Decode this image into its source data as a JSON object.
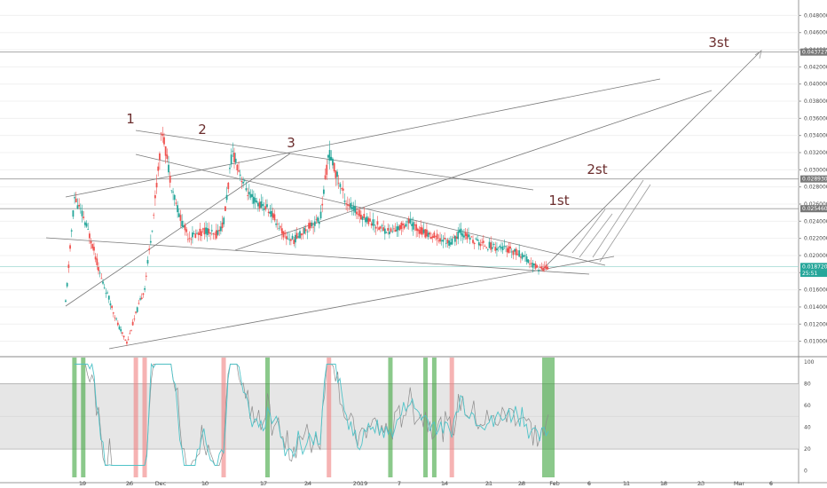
{
  "chart_data": [
    {
      "type": "candlestick",
      "y_axis": {
        "ticks": [
          "0.048000",
          "0.046000",
          "0.044000",
          "0.042000",
          "0.040000",
          "0.038000",
          "0.036000",
          "0.034000",
          "0.032000",
          "0.030000",
          "0.028000",
          "0.026000",
          "0.024000",
          "0.022000",
          "0.020000",
          "0.018000",
          "0.016000",
          "0.014000",
          "0.012000",
          "0.010000"
        ],
        "range": [
          0.0082,
          0.0498
        ]
      },
      "x_axis": {
        "labels": [
          "19",
          "26",
          "Dec",
          "10",
          "17",
          "24",
          "2019",
          "7",
          "14",
          "21",
          "28",
          "Feb",
          "6",
          "11",
          "18",
          "23",
          "Mar",
          "6"
        ]
      },
      "price_tags": [
        {
          "label": "0.043727",
          "value": 0.043727,
          "color": "#787878"
        },
        {
          "label": "0.028930",
          "value": 0.02893,
          "color": "#787878"
        },
        {
          "label": "0.025460",
          "value": 0.02546,
          "color": "#787878"
        },
        {
          "label": "0.018720",
          "value": 0.01872,
          "color": "#26a69a"
        },
        {
          "label": "25:51",
          "value": 0.01792,
          "color": "#26a69a"
        }
      ],
      "annotations": {
        "wave_labels": [
          "1",
          "2",
          "3"
        ],
        "target_labels": [
          "1st",
          "2st",
          "3st"
        ]
      },
      "price_path_samples": [
        [
          0,
          0.0145
        ],
        [
          1,
          0.0268
        ],
        [
          2,
          0.0245
        ],
        [
          3,
          0.0215
        ],
        [
          4,
          0.0175
        ],
        [
          5,
          0.0148
        ],
        [
          6,
          0.0118
        ],
        [
          7,
          0.0098
        ],
        [
          8,
          0.0132
        ],
        [
          9,
          0.0162
        ],
        [
          10,
          0.0245
        ],
        [
          11,
          0.0348
        ],
        [
          12,
          0.0285
        ],
        [
          13,
          0.0245
        ],
        [
          14,
          0.0222
        ],
        [
          15,
          0.0225
        ],
        [
          16,
          0.023
        ],
        [
          17,
          0.0222
        ],
        [
          18,
          0.0238
        ],
        [
          19,
          0.0322
        ],
        [
          20,
          0.0292
        ],
        [
          21,
          0.0268
        ],
        [
          22,
          0.026
        ],
        [
          23,
          0.0255
        ],
        [
          24,
          0.024
        ],
        [
          25,
          0.0222
        ],
        [
          26,
          0.0218
        ],
        [
          27,
          0.0228
        ],
        [
          28,
          0.0236
        ],
        [
          29,
          0.0242
        ],
        [
          30,
          0.032
        ],
        [
          31,
          0.029
        ],
        [
          32,
          0.0262
        ],
        [
          33,
          0.0252
        ],
        [
          34,
          0.0245
        ],
        [
          35,
          0.0238
        ],
        [
          36,
          0.0232
        ],
        [
          37,
          0.0228
        ],
        [
          38,
          0.0232
        ],
        [
          39,
          0.024
        ],
        [
          40,
          0.0232
        ],
        [
          41,
          0.0226
        ],
        [
          42,
          0.0222
        ],
        [
          43,
          0.0218
        ],
        [
          44,
          0.0215
        ],
        [
          45,
          0.0228
        ],
        [
          46,
          0.022
        ],
        [
          47,
          0.0215
        ],
        [
          48,
          0.0212
        ],
        [
          49,
          0.021
        ],
        [
          50,
          0.0208
        ],
        [
          51,
          0.0205
        ],
        [
          52,
          0.02
        ],
        [
          53,
          0.019
        ],
        [
          54,
          0.0185
        ],
        [
          55,
          0.0187
        ]
      ]
    },
    {
      "type": "line",
      "title": "",
      "y_axis": {
        "ticks": [
          "100",
          "80",
          "60",
          "40",
          "20",
          "0"
        ],
        "range": [
          -6,
          104
        ]
      },
      "bands": [
        20,
        80
      ],
      "highlights": [
        {
          "color": "green",
          "at": 1
        },
        {
          "color": "green",
          "at": 2
        },
        {
          "color": "red",
          "at": 8
        },
        {
          "color": "red",
          "at": 9
        },
        {
          "color": "red",
          "at": 18
        },
        {
          "color": "green",
          "at": 23
        },
        {
          "color": "red",
          "at": 30
        },
        {
          "color": "green",
          "at": 37
        },
        {
          "color": "green",
          "at": 41
        },
        {
          "color": "green",
          "at": 42
        },
        {
          "color": "red",
          "at": 44
        },
        {
          "color": "green",
          "at": 55
        }
      ]
    }
  ]
}
